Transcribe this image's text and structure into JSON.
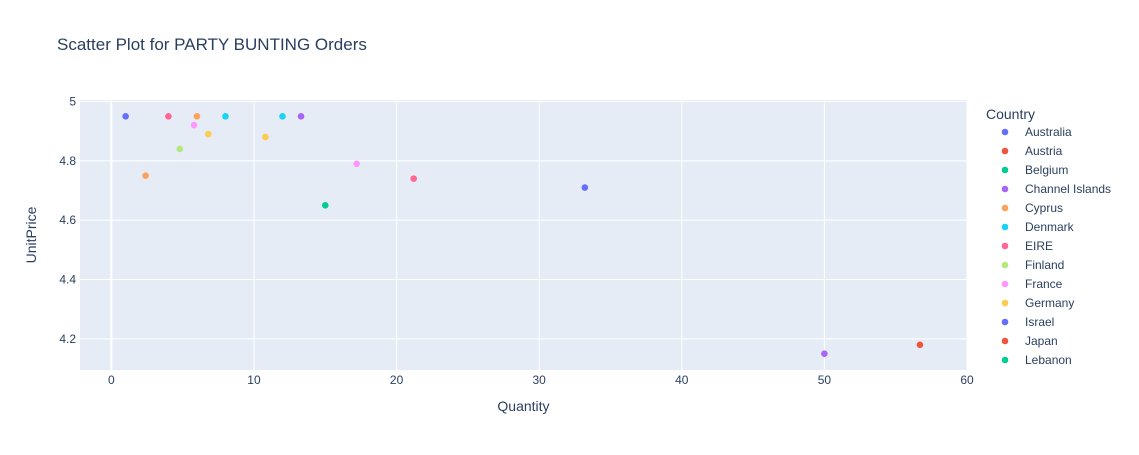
{
  "chart_data": {
    "type": "scatter",
    "title": "Scatter Plot for PARTY BUNTING Orders",
    "xlabel": "Quantity",
    "ylabel": "UnitPrice",
    "xlim": [
      -2.2,
      60
    ],
    "ylim": [
      4.095,
      5.005
    ],
    "x_ticks": [
      0,
      10,
      20,
      30,
      40,
      50,
      60
    ],
    "y_ticks": [
      4.2,
      4.4,
      4.6,
      4.8,
      5
    ],
    "x_tick_labels": [
      "0",
      "10",
      "20",
      "30",
      "40",
      "50",
      "60"
    ],
    "y_tick_labels": [
      "4.2",
      "4.4",
      "4.6",
      "4.8",
      "5"
    ],
    "grid": true,
    "legend_title": "Country",
    "legend_position": "right",
    "series": [
      {
        "name": "Australia",
        "color": "#636efa",
        "points": [
          {
            "x": 1,
            "y": 4.95
          },
          {
            "x": 33.2,
            "y": 4.71
          }
        ]
      },
      {
        "name": "Austria",
        "color": "#EF553B",
        "points": []
      },
      {
        "name": "Belgium",
        "color": "#00cc96",
        "points": []
      },
      {
        "name": "Channel Islands",
        "color": "#ab63fa",
        "points": [
          {
            "x": 13.3,
            "y": 4.95
          },
          {
            "x": 50,
            "y": 4.15
          }
        ]
      },
      {
        "name": "Cyprus",
        "color": "#FFA15A",
        "points": [
          {
            "x": 2.4,
            "y": 4.75
          },
          {
            "x": 6,
            "y": 4.95
          }
        ]
      },
      {
        "name": "Denmark",
        "color": "#19d3f3",
        "points": [
          {
            "x": 8,
            "y": 4.95
          },
          {
            "x": 12,
            "y": 4.95
          }
        ]
      },
      {
        "name": "EIRE",
        "color": "#FF6692",
        "points": [
          {
            "x": 4,
            "y": 4.95
          },
          {
            "x": 21.2,
            "y": 4.74
          }
        ]
      },
      {
        "name": "Finland",
        "color": "#B6E880",
        "points": [
          {
            "x": 4.8,
            "y": 4.84
          }
        ]
      },
      {
        "name": "France",
        "color": "#FF97FF",
        "points": [
          {
            "x": 5.8,
            "y": 4.92
          },
          {
            "x": 17.2,
            "y": 4.79
          }
        ]
      },
      {
        "name": "Germany",
        "color": "#FECB52",
        "points": [
          {
            "x": 6.8,
            "y": 4.89
          },
          {
            "x": 10.8,
            "y": 4.88
          }
        ]
      },
      {
        "name": "Israel",
        "color": "#636efa",
        "points": []
      },
      {
        "name": "Japan",
        "color": "#EF553B",
        "points": [
          {
            "x": 56.7,
            "y": 4.18
          }
        ]
      },
      {
        "name": "Lebanon",
        "color": "#00cc96",
        "points": [
          {
            "x": 15,
            "y": 4.65
          }
        ]
      }
    ]
  }
}
